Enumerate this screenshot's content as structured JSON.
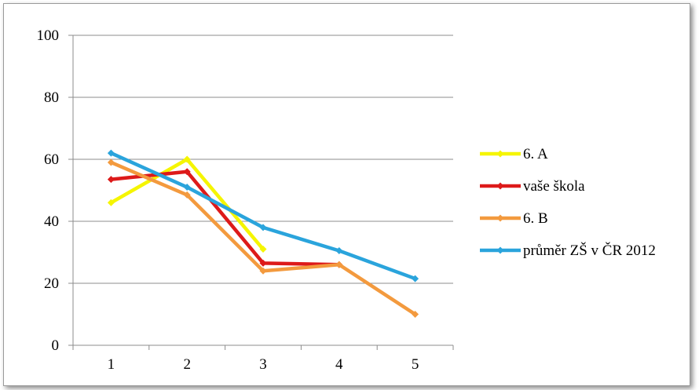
{
  "chart_data": {
    "type": "line",
    "title": "",
    "xlabel": "",
    "ylabel": "",
    "x": [
      "1",
      "2",
      "3",
      "4",
      "5"
    ],
    "ylim": [
      0,
      100
    ],
    "yticks": [
      "0",
      "20",
      "40",
      "60",
      "80",
      "100"
    ],
    "grid": "horizontal",
    "legend_position": "right",
    "series": [
      {
        "name": "6. A",
        "color": "#f5f500",
        "values": [
          46,
          60,
          31,
          null,
          null
        ]
      },
      {
        "name": "vaše škola",
        "color": "#dd1a1a",
        "values": [
          53.5,
          56,
          26.5,
          26,
          null
        ]
      },
      {
        "name": "6. B",
        "color": "#f39a3e",
        "values": [
          59,
          48.5,
          24,
          26,
          10
        ]
      },
      {
        "name": "průměr ZŠ v ČR 2012",
        "color": "#2aa4dc",
        "values": [
          62,
          51,
          38,
          30.5,
          21.5
        ]
      }
    ]
  }
}
